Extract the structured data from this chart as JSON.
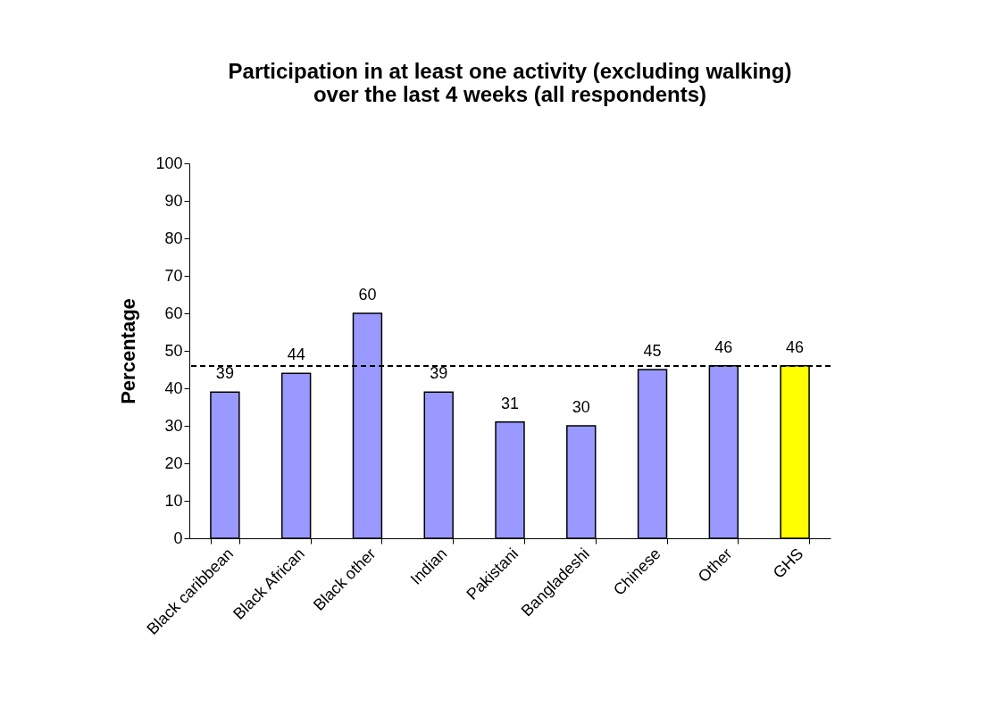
{
  "chart_data": {
    "type": "bar",
    "title": [
      "Participation in at least one activity (excluding walking)",
      "over the last 4 weeks (all respondents)"
    ],
    "ylabel": "Percentage",
    "categories": [
      "Black caribbean",
      "Black African",
      "Black other",
      "Indian",
      "Pakistani",
      "Bangladeshi",
      "Chinese",
      "Other",
      "GHS"
    ],
    "values": [
      39,
      44,
      60,
      39,
      31,
      30,
      45,
      46,
      46
    ],
    "colors": [
      "#9999ff",
      "#9999ff",
      "#9999ff",
      "#9999ff",
      "#9999ff",
      "#9999ff",
      "#9999ff",
      "#9999ff",
      "#ffff00"
    ],
    "ylim": [
      0,
      100
    ],
    "yticks": [
      0,
      10,
      20,
      30,
      40,
      50,
      60,
      70,
      80,
      90,
      100
    ],
    "ref_lines": [
      {
        "axis": "y",
        "value": 46,
        "color": "#000000",
        "line_style": "dashed"
      }
    ],
    "data_labels": true,
    "grid": false
  }
}
